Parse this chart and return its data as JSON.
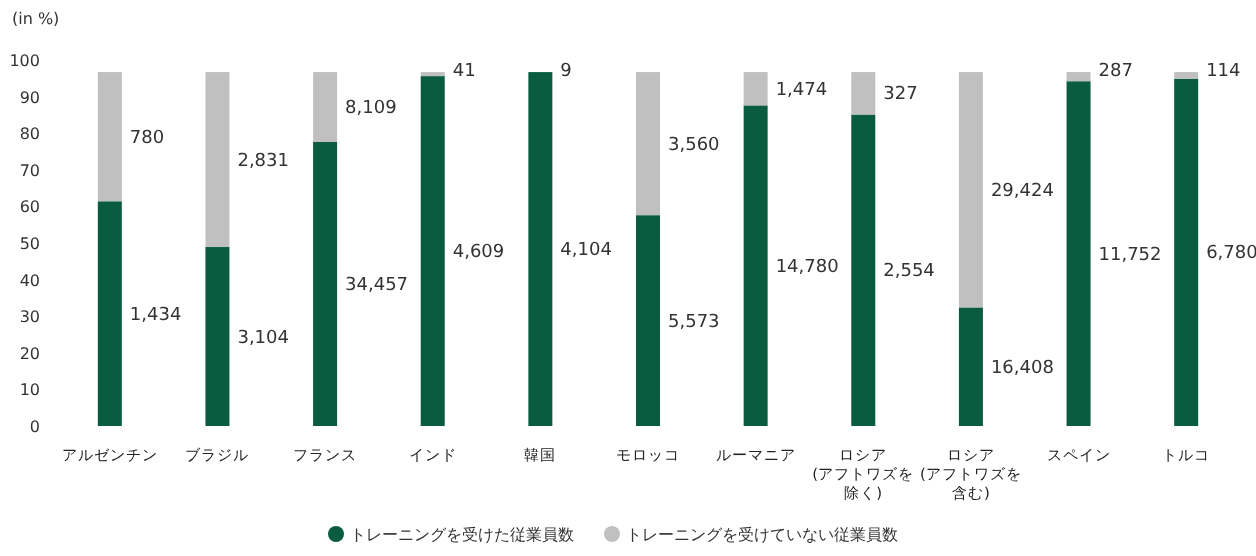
{
  "chart_data": {
    "type": "bar",
    "stacked": true,
    "ylabel": "(in %)",
    "categories": [
      "アルゼンチン",
      "ブラジル",
      "フランス",
      "インド",
      "韓国",
      "モロッコ",
      "ルーマニア",
      "ロシア(アフトワズを除く)",
      "ロシア(アフトワズを含む)",
      "スペイン",
      "トルコ"
    ],
    "series": [
      {
        "name": "トレーニングを受けた従業員数",
        "color": "#0a5c40",
        "values": [
          61.4,
          48.9,
          77.6,
          95.6,
          96.7,
          57.6,
          87.6,
          85.1,
          32.4,
          94.2,
          94.9
        ]
      },
      {
        "name": "トレーニングを受けていない従業員数",
        "color": "#c0c0c0",
        "values": [
          35.3,
          47.8,
          19.1,
          1.1,
          0,
          39.1,
          9.1,
          11.6,
          64.3,
          2.5,
          1.8
        ]
      }
    ],
    "annotations": [
      "1,434",
      "3,104",
      "34,457",
      "4,609",
      "4,104",
      "5,573",
      "14,780",
      "2,554",
      "16,408",
      "11,752",
      "6,780",
      "780",
      "2,831",
      "8,109",
      "41",
      "9",
      "3,560",
      "1,474",
      "327",
      "29,424",
      "287",
      "114"
    ],
    "ylim": [
      0,
      100
    ],
    "yticks": [
      0,
      10,
      20,
      30,
      40,
      50,
      60,
      70,
      80,
      90,
      100
    ],
    "grid": false,
    "legend": "bottom"
  }
}
